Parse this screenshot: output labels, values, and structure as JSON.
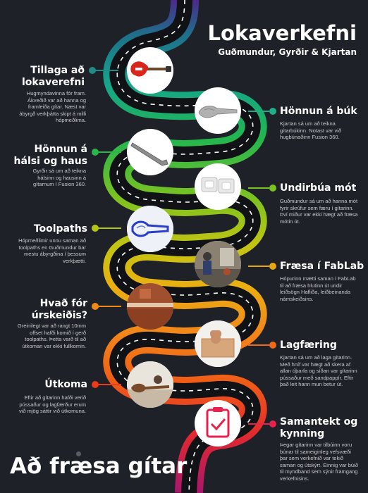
{
  "header": {
    "title": "Lokaverkefni",
    "authors": "Guðmundur, Gyrðir & Kjartan"
  },
  "footer_title": "Að fræsa gítar",
  "colors": {
    "background": "#1f2128",
    "road": "#111216",
    "dash": "#ffffff"
  },
  "steps": [
    {
      "title": "Tillaga að lokaverefni",
      "body": "Hugmyndavinna fór fram. Ákveðið var að hanna og framleiða gítar. Næst var ábyrgð verkþátta skipt á milli hópmeðlima.",
      "color": "#20898a",
      "icon": "electric-guitar-photo"
    },
    {
      "title": "Hönnun á búk",
      "body": "Kjartan sá um að teikna gítarbúkinn. Notast var við hugbúnaðinn Fusion 360.",
      "color": "#1fae8c",
      "icon": "guitar-body-model"
    },
    {
      "title": "Hönnun á hálsi og haus",
      "body": "Gyrðir sá um að teikna hálsinn og hausinn á gítarnum í Fusion 360.",
      "color": "#27b84c",
      "icon": "guitar-neck-model"
    },
    {
      "title": "Undirbúa mót",
      "body": "Guðmundur sá um að hanna mót fyrir skrúfur sem færu í gítarinn. Því miður var ekki hægt að fræsa mótin út.",
      "color": "#7cc320",
      "icon": "mold-model"
    },
    {
      "title": "Toolpaths",
      "body": "Hópmeðlimir unnu saman að toolpaths en Guðmundur bar mestu ábyrgðina í þessum verkþætti.",
      "color": "#b3c512",
      "icon": "toolpath-render"
    },
    {
      "title": "Fræsa í FabLab",
      "body": "Hópurinn mætti saman í FabLab til að fræsa hlutinn út undir leiðsögn Hafliða, leiðbeinanda námskeiðsins.",
      "color": "#e6a711",
      "icon": "fablab-photo"
    },
    {
      "title": "Hvað fór úrskeiðis?",
      "body": "Greinilegt var að rangt 10mm offset hafði komið í gerð toolpaths. Þetta varð til að útkoman var ekki fullkomin.",
      "color": "#f08a17",
      "icon": "wood-error-photo"
    },
    {
      "title": "Lagfæring",
      "body": "Kjartan sá um að laga gítarinn. Með hníf var hægt að skera af allan óþarfa og síðan var gítarinn pússaður með sandpappír. Eftir það leit hann mun betur út.",
      "color": "#f06a15",
      "icon": "wood-fix-photo"
    },
    {
      "title": "Útkoma",
      "body": "Eftir að gítarinn hafði verið pússaður og lagfærður erum við mjög sáttir við útkomuna.",
      "color": "#ec3a1c",
      "icon": "finished-guitar-photo"
    },
    {
      "title": "Samantekt og kynning",
      "body": "Þegar gítarinn var tilbúinn voru búnar til sameiginleg vefsvæði þar sem verkefnið var tekið saman og útskýrt. Einnig var búið til myndband sem sýnir framgang verkefnisins.",
      "color": "#e8214e",
      "icon": "clipboard-icon"
    }
  ]
}
